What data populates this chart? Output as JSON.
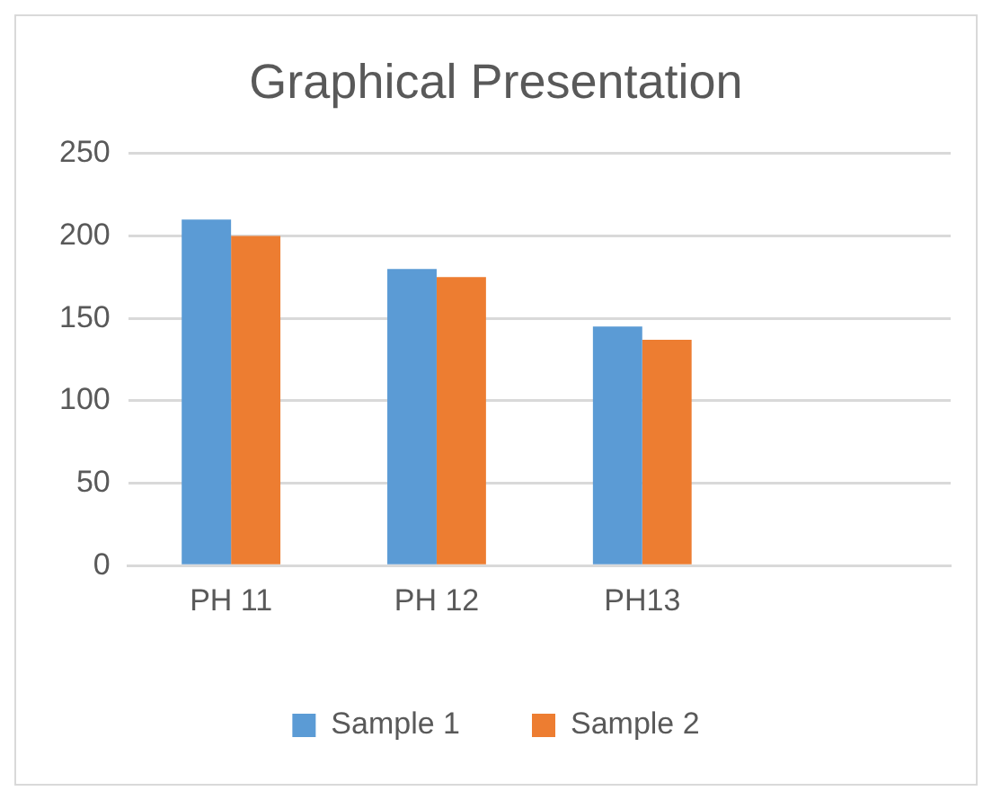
{
  "chart_data": {
    "type": "bar",
    "title": "Graphical Presentation",
    "categories": [
      "PH 11",
      "PH 12",
      "PH13",
      null
    ],
    "series": [
      {
        "name": "Sample 1",
        "color": "#5b9bd5",
        "values": [
          210,
          180,
          145,
          null
        ]
      },
      {
        "name": "Sample 2",
        "color": "#ed7d31",
        "values": [
          200,
          175,
          137,
          null
        ]
      }
    ],
    "ylim": [
      0,
      250
    ],
    "yticks": [
      0,
      50,
      100,
      150,
      200,
      250
    ],
    "grid": "y",
    "legend": "bottom"
  }
}
